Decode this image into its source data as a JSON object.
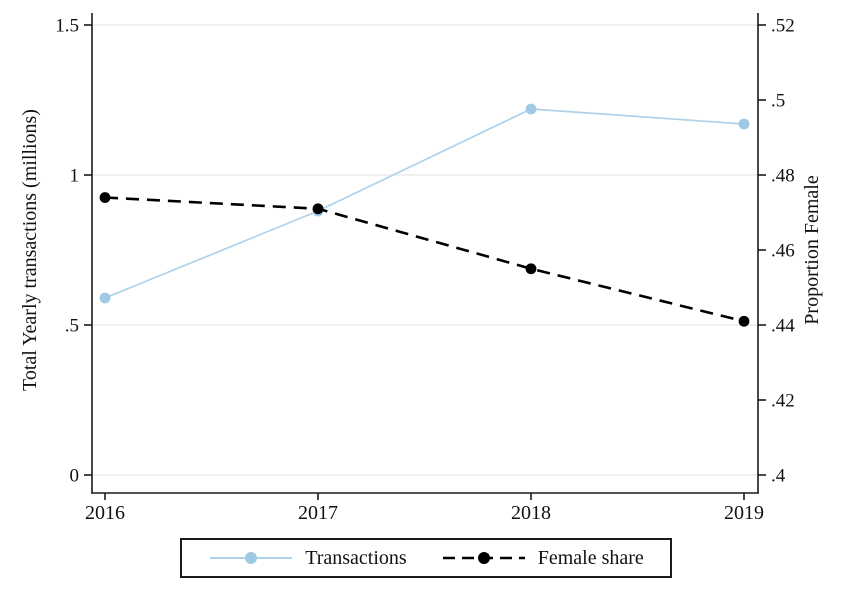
{
  "chart_data": {
    "type": "line",
    "x": [
      2016,
      2017,
      2018,
      2019
    ],
    "x_tick_labels": [
      "2016",
      "2017",
      "2018",
      "2019"
    ],
    "series": [
      {
        "name": "Transactions",
        "axis": "left",
        "values": [
          0.59,
          0.88,
          1.22,
          1.17
        ],
        "line_color": "#aed2e9",
        "marker_color": "#a0c9e5",
        "line_style": "solid",
        "marker": "circle"
      },
      {
        "name": "Female share",
        "axis": "right",
        "values": [
          0.474,
          0.471,
          0.455,
          0.441
        ],
        "line_color": "#000000",
        "marker_color": "#000000",
        "line_style": "dashed",
        "marker": "circle"
      }
    ],
    "left_axis": {
      "title": "Total Yearly transactions (millions)",
      "tick_values": [
        0,
        0.5,
        1,
        1.5
      ],
      "tick_labels": [
        "0",
        ".5",
        "1",
        "1.5"
      ],
      "range": [
        0,
        1.5
      ]
    },
    "right_axis": {
      "title": "Proportion Female",
      "tick_values": [
        0.4,
        0.42,
        0.44,
        0.46,
        0.48,
        0.5,
        0.52
      ],
      "tick_labels": [
        ".4",
        ".42",
        ".44",
        ".46",
        ".48",
        ".5",
        ".52"
      ],
      "range": [
        0.4,
        0.52
      ]
    },
    "grid": "horizontal gridlines at left-axis tick positions",
    "legend_position": "bottom-center",
    "colors": {
      "grid": "#edeaf0",
      "spine": "#1a1a1a",
      "tick_text": "#111111",
      "background": "#ffffff"
    }
  }
}
